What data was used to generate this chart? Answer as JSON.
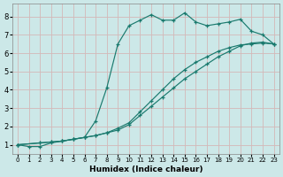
{
  "bg_color": "#cce8e8",
  "grid_color": "#d4b8b8",
  "line_color": "#1a7a6e",
  "xlabel": "Humidex (Indice chaleur)",
  "xlim": [
    -0.5,
    23.5
  ],
  "ylim": [
    0.5,
    8.7
  ],
  "xticks": [
    0,
    1,
    2,
    3,
    4,
    5,
    6,
    7,
    8,
    9,
    10,
    11,
    12,
    13,
    14,
    15,
    16,
    17,
    18,
    19,
    20,
    21,
    22,
    23
  ],
  "yticks": [
    1,
    2,
    3,
    4,
    5,
    6,
    7,
    8
  ],
  "curve_x": [
    0,
    1,
    2,
    3,
    4,
    5,
    6,
    7,
    8,
    9,
    10,
    11,
    12,
    13,
    14,
    15,
    16,
    17,
    18,
    19,
    20,
    21,
    22,
    23
  ],
  "curve_y": [
    1.0,
    0.9,
    0.9,
    1.1,
    1.2,
    1.3,
    1.4,
    2.3,
    4.1,
    6.5,
    7.5,
    7.8,
    8.1,
    7.8,
    7.8,
    8.2,
    7.7,
    7.5,
    7.6,
    7.7,
    7.85,
    7.2,
    7.0,
    6.5
  ],
  "line2_x": [
    0,
    2,
    3,
    4,
    5,
    6,
    7,
    8,
    9,
    10,
    11,
    12,
    13,
    14,
    15,
    16,
    17,
    18,
    19,
    20,
    21,
    22,
    23
  ],
  "line2_y": [
    1.0,
    1.1,
    1.15,
    1.2,
    1.3,
    1.4,
    1.5,
    1.65,
    1.8,
    2.1,
    2.6,
    3.1,
    3.6,
    4.1,
    4.6,
    5.0,
    5.4,
    5.8,
    6.1,
    6.4,
    6.55,
    6.6,
    6.5
  ],
  "line3_x": [
    0,
    2,
    3,
    4,
    5,
    6,
    7,
    8,
    9,
    10,
    11,
    12,
    13,
    14,
    15,
    16,
    17,
    18,
    19,
    20,
    21,
    22,
    23
  ],
  "line3_y": [
    1.0,
    1.1,
    1.15,
    1.2,
    1.3,
    1.4,
    1.5,
    1.65,
    1.9,
    2.2,
    2.8,
    3.4,
    4.0,
    4.6,
    5.1,
    5.5,
    5.8,
    6.1,
    6.3,
    6.45,
    6.5,
    6.55,
    6.5
  ]
}
